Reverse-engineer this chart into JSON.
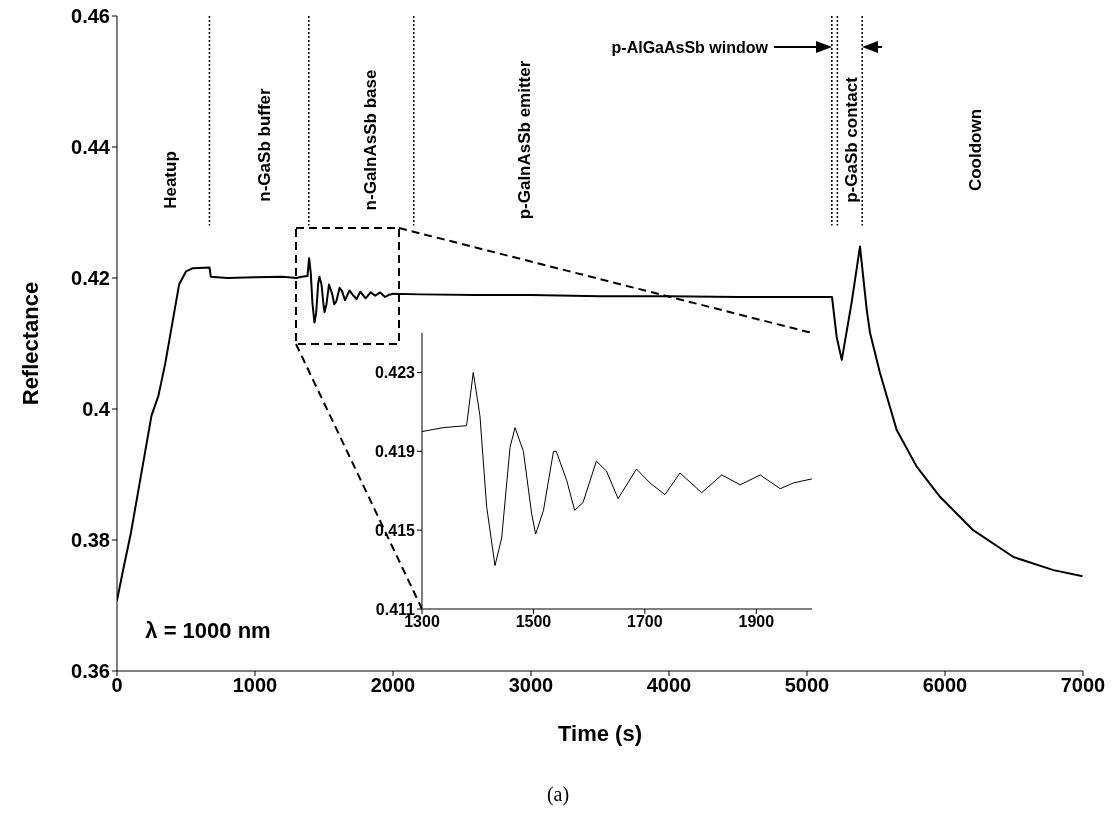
{
  "chart_data": [
    {
      "type": "line",
      "xlabel": "Time (s)",
      "ylabel": "Reflectance",
      "xlim": [
        0,
        7000
      ],
      "ylim": [
        0.36,
        0.46
      ],
      "xticks": [
        0,
        1000,
        2000,
        3000,
        4000,
        5000,
        6000,
        7000
      ],
      "yticks": [
        0.36,
        0.38,
        0.4,
        0.42,
        0.44,
        0.46
      ],
      "marker": "none",
      "line_style": "solid",
      "series": [
        {
          "color": "#000000",
          "x": [
            0,
            50,
            100,
            150,
            200,
            250,
            300,
            350,
            400,
            450,
            500,
            550,
            670,
            680,
            800,
            1000,
            1200,
            1300,
            1338,
            1380,
            1392,
            1404,
            1416,
            1431,
            1443,
            1458,
            1467,
            1482,
            1497,
            1504,
            1518,
            1536,
            1560,
            1574,
            1589,
            1613,
            1631,
            1652,
            1685,
            1709,
            1736,
            1763,
            1802,
            1838,
            1871,
            1907,
            1943,
            1967,
            2000,
            2200,
            2600,
            3000,
            3500,
            4000,
            4500,
            5000,
            5181,
            5215,
            5252,
            5323,
            5384,
            5433,
            5457,
            5529,
            5650,
            5795,
            5964,
            6204,
            6496,
            6786,
            6990
          ],
          "values": [
            0.3708,
            0.376,
            0.381,
            0.387,
            0.393,
            0.399,
            0.402,
            0.407,
            0.413,
            0.419,
            0.421,
            0.4215,
            0.4216,
            0.4202,
            0.42,
            0.4201,
            0.4202,
            0.42,
            0.4202,
            0.4203,
            0.423,
            0.4208,
            0.4162,
            0.4132,
            0.4146,
            0.4192,
            0.4202,
            0.419,
            0.4158,
            0.4148,
            0.416,
            0.419,
            0.4175,
            0.416,
            0.4164,
            0.4185,
            0.418,
            0.4166,
            0.4181,
            0.4174,
            0.4168,
            0.4179,
            0.4169,
            0.4178,
            0.4173,
            0.4178,
            0.4171,
            0.4174,
            0.4176,
            0.4175,
            0.4174,
            0.4174,
            0.4172,
            0.4172,
            0.4171,
            0.4171,
            0.4171,
            0.411,
            0.4075,
            0.4162,
            0.4248,
            0.4151,
            0.4116,
            0.4055,
            0.3968,
            0.3912,
            0.3866,
            0.3815,
            0.3774,
            0.3754,
            0.3745
          ]
        }
      ],
      "ref_lines": [
        {
          "axis": "x",
          "value": 670,
          "line_style": "dotted"
        },
        {
          "axis": "x",
          "value": 1390,
          "line_style": "dotted"
        },
        {
          "axis": "x",
          "value": 2150,
          "line_style": "dotted"
        },
        {
          "axis": "x",
          "value": 5180,
          "line_style": "dotted"
        },
        {
          "axis": "x",
          "value": 5220,
          "line_style": "dotted"
        },
        {
          "axis": "x",
          "value": 5400,
          "line_style": "dotted"
        }
      ],
      "annotations": [
        "Heatup",
        "n-GaSb buffer",
        "n-GaInAsSb base",
        "p-GaInAsSb emitter",
        "p-GaSb contact",
        "Cooldown",
        "p-AlGaAsSb window",
        "λ = 1000 nm",
        "(a)"
      ]
    },
    {
      "type": "line",
      "xlim": [
        1300,
        2000
      ],
      "ylim": [
        0.411,
        0.425
      ],
      "xticks": [
        1300,
        1500,
        1700,
        1900
      ],
      "yticks": [
        0.411,
        0.415,
        0.419,
        0.423
      ],
      "marker": "none",
      "line_style": "solid",
      "series": [
        {
          "color": "#000000",
          "x": [
            1300,
            1338,
            1380,
            1392,
            1404,
            1416,
            1431,
            1443,
            1458,
            1467,
            1482,
            1497,
            1504,
            1518,
            1536,
            1541,
            1560,
            1574,
            1589,
            1613,
            1631,
            1652,
            1685,
            1709,
            1736,
            1763,
            1802,
            1838,
            1871,
            1907,
            1943,
            1967,
            2000
          ],
          "values": [
            0.42,
            0.4202,
            0.4203,
            0.423,
            0.4208,
            0.4162,
            0.4132,
            0.4146,
            0.4192,
            0.4202,
            0.419,
            0.4158,
            0.4148,
            0.416,
            0.419,
            0.419,
            0.4175,
            0.416,
            0.4164,
            0.4185,
            0.418,
            0.4166,
            0.4181,
            0.4174,
            0.4168,
            0.4179,
            0.4169,
            0.4178,
            0.4173,
            0.4178,
            0.4171,
            0.4174,
            0.4176
          ]
        }
      ]
    }
  ]
}
